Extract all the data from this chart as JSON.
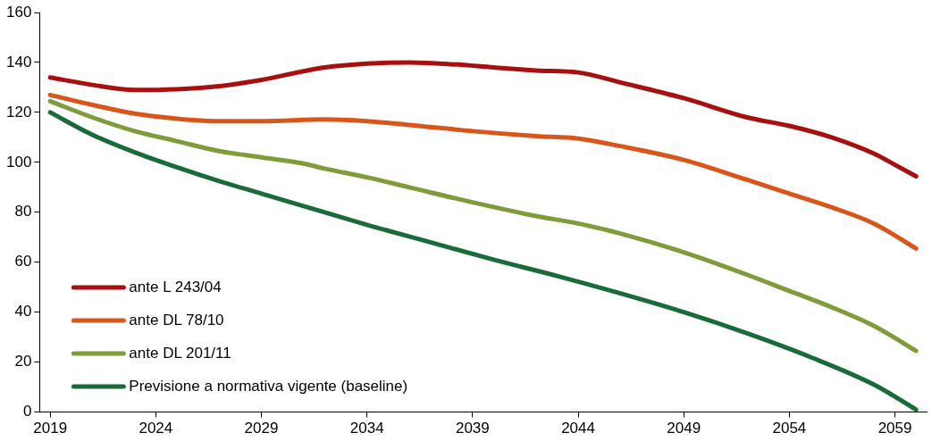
{
  "chart_data": {
    "type": "line",
    "xlim": [
      2018.5,
      2060.5
    ],
    "xticks": [
      2019,
      2024,
      2029,
      2034,
      2039,
      2044,
      2049,
      2054,
      2059
    ],
    "ylim": [
      0,
      160
    ],
    "yticks": [
      0,
      20,
      40,
      60,
      80,
      100,
      120,
      140,
      160
    ],
    "grid": false,
    "legend": "bottom left",
    "marker": "none",
    "line_style": "solid",
    "series": [
      {
        "name": "ante L 243/04",
        "color": "#a80f0f",
        "x": [
          2019,
          2021,
          2023,
          2025,
          2027,
          2029,
          2031,
          2032,
          2034,
          2036,
          2038,
          2040,
          2042,
          2044,
          2046,
          2049,
          2052,
          2054,
          2056,
          2058,
          2059,
          2060
        ],
        "values": [
          134,
          131,
          129,
          129.3,
          130.5,
          133,
          136.5,
          138,
          139.5,
          140,
          139.3,
          138,
          136.8,
          136,
          132,
          125.7,
          118,
          114.6,
          110,
          103.5,
          99,
          94.4
        ]
      },
      {
        "name": "ante DL 78/10",
        "color": "#d9561b",
        "x": [
          2019,
          2021,
          2023,
          2025,
          2027,
          2029,
          2032,
          2034,
          2036,
          2039,
          2042,
          2044,
          2046,
          2049,
          2052,
          2054,
          2056,
          2058,
          2060
        ],
        "values": [
          127,
          123,
          119.5,
          117.5,
          116.5,
          116.5,
          117.2,
          116.5,
          115,
          112.5,
          110.5,
          109.5,
          106.5,
          101,
          93,
          87.5,
          82,
          75.5,
          65.5
        ]
      },
      {
        "name": "ante DL 201/11",
        "color": "#7f9b3a",
        "x": [
          2019,
          2021,
          2023,
          2025,
          2027,
          2029,
          2031,
          2032,
          2034,
          2036,
          2039,
          2042,
          2044,
          2046,
          2049,
          2052,
          2054,
          2056,
          2058,
          2060
        ],
        "values": [
          124.5,
          118,
          112.5,
          108.5,
          104.5,
          102,
          99.5,
          97.5,
          94,
          90,
          84,
          78.5,
          75.5,
          71.5,
          64,
          55,
          48.5,
          42,
          34.5,
          24.5
        ]
      },
      {
        "name": "Previsione a normativa vigente (baseline)",
        "color": "#1a6b3a",
        "x": [
          2019,
          2021,
          2023,
          2025,
          2027,
          2029,
          2031,
          2034,
          2037,
          2040,
          2043,
          2046,
          2049,
          2052,
          2055,
          2058,
          2060
        ],
        "values": [
          120,
          111,
          104,
          98,
          92.5,
          87.5,
          82.5,
          75,
          68,
          61,
          54.5,
          47.5,
          40,
          31.5,
          22,
          11,
          1
        ]
      }
    ]
  }
}
